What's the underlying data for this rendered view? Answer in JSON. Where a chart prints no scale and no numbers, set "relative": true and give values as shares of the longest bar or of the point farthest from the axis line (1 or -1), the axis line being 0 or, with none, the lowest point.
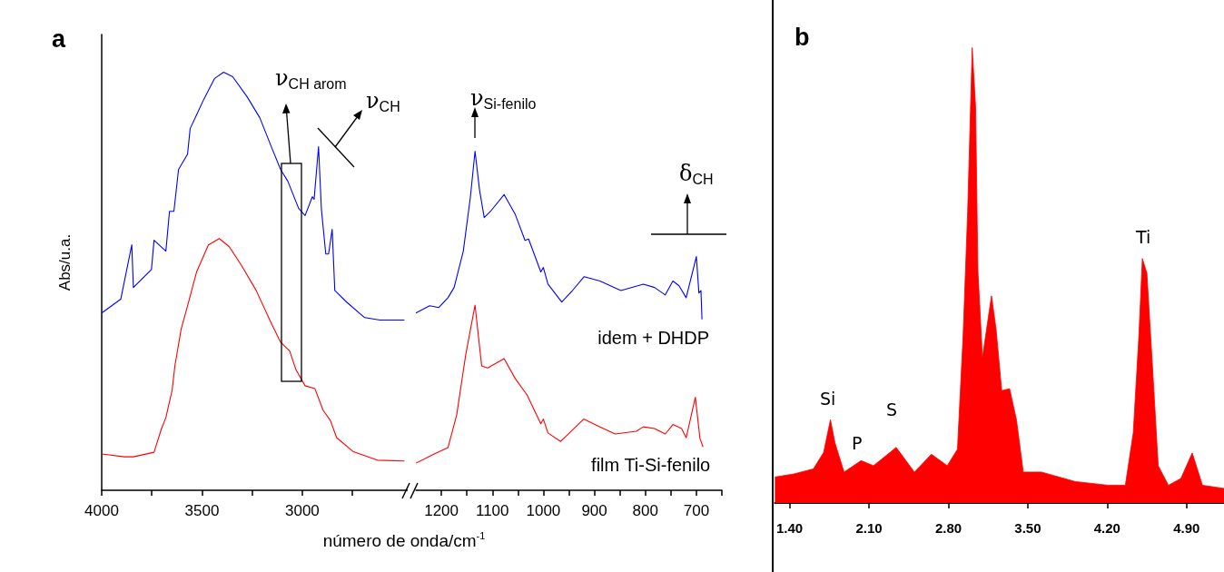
{
  "chart_data": [
    {
      "type": "line",
      "title": "a",
      "ylabel": "Abs/u.a.",
      "xlabel": "número de onda/cm$^{-1}$",
      "relative": true,
      "marker": "none",
      "xlim": [
        4000,
        2470
      ],
      "xticks": [
        4000,
        {
          "value": 3750,
          "label": null
        },
        3500,
        {
          "value": 3250,
          "label": null
        },
        3000,
        {
          "value": 2750,
          "label": null
        }
      ],
      "annotations": [
        "ν$_{CH arom}$",
        "ν$_{CH}$"
      ],
      "series": [
        {
          "color": "#0000ff",
          "x": [
            4000,
            3905,
            3850,
            3842,
            3752,
            3739,
            3680,
            3662,
            3640,
            3617,
            3572,
            3559,
            3527,
            3491,
            3437,
            3392,
            3347,
            3275,
            3212,
            3153,
            3108,
            3072,
            3018,
            2986,
            2950,
            2941,
            2919,
            2905,
            2883,
            2869,
            2851,
            2838,
            2779,
            2689,
            2613,
            2491
          ],
          "values": [
            0.424,
            0.457,
            0.587,
            0.485,
            0.528,
            0.598,
            0.572,
            0.667,
            0.667,
            0.767,
            0.804,
            0.865,
            0.898,
            0.935,
            0.985,
            1,
            0.989,
            0.941,
            0.891,
            0.82,
            0.767,
            0.739,
            0.674,
            0.657,
            0.702,
            0.696,
            0.822,
            0.674,
            0.565,
            0.565,
            0.624,
            0.478,
            0.45,
            0.413,
            0.407,
            0.407
          ]
        },
        {
          "color": "#ff0000",
          "x": [
            4000,
            3887,
            3842,
            3739,
            3703,
            3680,
            3649,
            3635,
            3604,
            3572,
            3527,
            3468,
            3414,
            3365,
            3302,
            3230,
            3153,
            3108,
            3063,
            3032,
            2986,
            2937,
            2896,
            2860,
            2829,
            2748,
            2626,
            2491
          ],
          "values": [
            0.087,
            0.08,
            0.08,
            0.091,
            0.146,
            0.174,
            0.239,
            0.298,
            0.385,
            0.441,
            0.522,
            0.587,
            0.602,
            0.583,
            0.537,
            0.478,
            0.398,
            0.354,
            0.333,
            0.289,
            0.25,
            0.243,
            0.191,
            0.167,
            0.126,
            0.093,
            0.072,
            0.07
          ]
        }
      ]
    },
    {
      "type": "line",
      "relative": true,
      "marker": "none",
      "xlim": [
        1250,
        650
      ],
      "xticks": [
        {
          "value": 1150,
          "label": null
        },
        1200,
        1100,
        {
          "value": 1050,
          "label": null
        },
        1000,
        {
          "value": 950,
          "label": null
        },
        900,
        {
          "value": 850,
          "label": null
        },
        800,
        {
          "value": 750,
          "label": null
        },
        700,
        {
          "value": 650,
          "label": null
        }
      ],
      "annotations": [
        "ν$_{Si-fenilo}$",
        "δ$_{CH}$"
      ],
      "series": [
        {
          "name": "idem + DHDP",
          "color": "#0000ff",
          "x": [
            1250,
            1223,
            1205,
            1187,
            1175,
            1157,
            1143,
            1134,
            1125,
            1116,
            1104,
            1077,
            1055,
            1036,
            1029,
            1005,
            1000,
            991,
            964,
            943,
            920,
            889,
            848,
            804,
            782,
            761,
            746,
            734,
            720,
            700,
            695,
            691,
            689
          ],
          "values": [
            0.523,
            0.544,
            0.539,
            0.568,
            0.598,
            0.705,
            0.866,
            1,
            0.884,
            0.804,
            0.822,
            0.872,
            0.813,
            0.737,
            0.741,
            0.644,
            0.657,
            0.608,
            0.555,
            0.589,
            0.63,
            0.617,
            0.589,
            0.608,
            0.598,
            0.576,
            0.617,
            0.603,
            0.568,
            0.689,
            0.582,
            0.589,
            0.504
          ]
        },
        {
          "name": "film Ti-Si-fenilo",
          "color": "#ff0000",
          "x": [
            1250,
            1214,
            1187,
            1170,
            1152,
            1134,
            1121,
            1109,
            1077,
            1055,
            1032,
            1005,
            1000,
            991,
            966,
            921,
            889,
            859,
            818,
            804,
            782,
            761,
            746,
            729,
            720,
            702,
            693,
            687
          ],
          "values": [
            0.08,
            0.107,
            0.126,
            0.222,
            0.402,
            0.546,
            0.367,
            0.361,
            0.388,
            0.329,
            0.281,
            0.196,
            0.21,
            0.169,
            0.144,
            0.21,
            0.187,
            0.166,
            0.174,
            0.187,
            0.182,
            0.166,
            0.194,
            0.182,
            0.155,
            0.274,
            0.153,
            0.128
          ]
        }
      ]
    },
    {
      "type": "area",
      "title": "b",
      "relative": true,
      "color": "#ff0000",
      "xlim": [
        1.27,
        5.23
      ],
      "xticks": [
        {
          "value": 1.4,
          "label": "1.40"
        },
        {
          "value": 2.1,
          "label": "2.10"
        },
        {
          "value": 2.8,
          "label": "2.80"
        },
        {
          "value": 3.5,
          "label": "3.50"
        },
        {
          "value": 4.2,
          "label": "4.20"
        },
        {
          "value": 4.9,
          "label": "4.90"
        }
      ],
      "annotations": [
        "Si",
        "P",
        "S",
        "Ti"
      ],
      "x": [
        1.27,
        1.44,
        1.61,
        1.7,
        1.76,
        1.8,
        1.88,
        2.03,
        2.14,
        2.34,
        2.5,
        2.65,
        2.79,
        2.88,
        2.93,
        2.97,
        3.01,
        3.04,
        3.06,
        3.1,
        3.18,
        3.22,
        3.27,
        3.34,
        3.4,
        3.46,
        3.62,
        3.92,
        4.21,
        4.36,
        4.43,
        4.48,
        4.51,
        4.55,
        4.6,
        4.65,
        4.74,
        4.85,
        4.95,
        5.04,
        5.23
      ],
      "values": [
        0.057,
        0.064,
        0.075,
        0.111,
        0.183,
        0.132,
        0.068,
        0.093,
        0.082,
        0.122,
        0.068,
        0.107,
        0.082,
        0.118,
        0.369,
        0.641,
        1,
        0.87,
        0.512,
        0.319,
        0.455,
        0.383,
        0.247,
        0.251,
        0.183,
        0.068,
        0.068,
        0.047,
        0.039,
        0.039,
        0.154,
        0.369,
        0.537,
        0.505,
        0.297,
        0.082,
        0.039,
        0.054,
        0.11,
        0.039,
        0.032
      ]
    }
  ]
}
